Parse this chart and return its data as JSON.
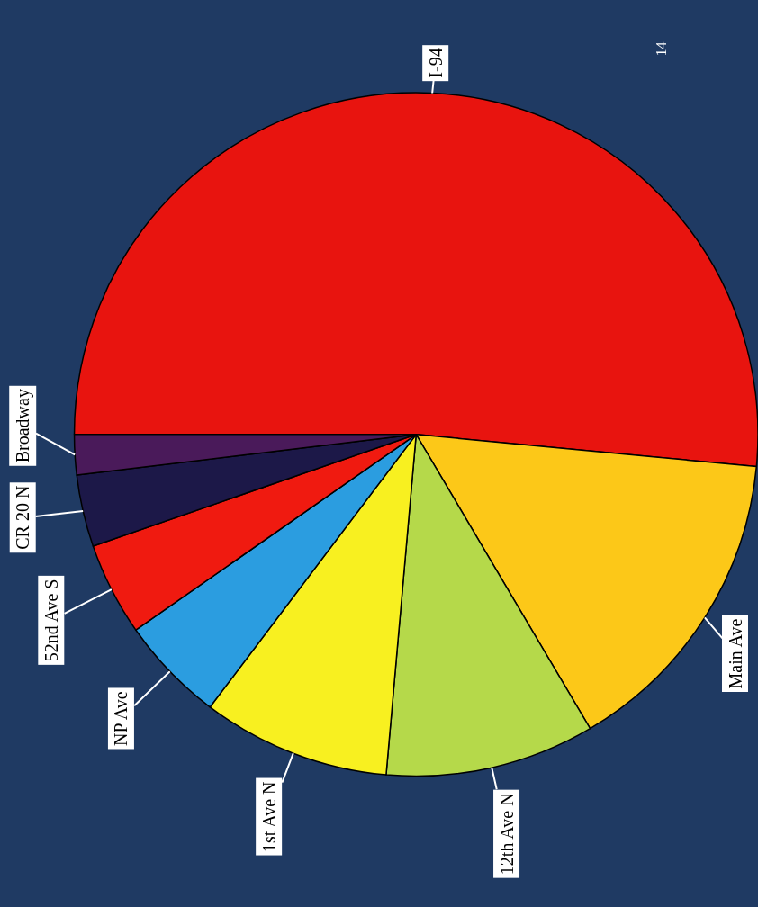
{
  "chart_data": {
    "type": "pie",
    "categories": [
      "I-94",
      "Main Ave",
      "12th Ave N",
      "1st Ave N",
      "NP Ave",
      "52nd Ave S",
      "CR 20 N",
      "Broadway"
    ],
    "values": [
      51.5,
      15.0,
      9.9,
      8.9,
      5.0,
      4.4,
      3.4,
      1.9
    ],
    "colors": [
      "#e8140f",
      "#fcc818",
      "#b5d94a",
      "#f8f020",
      "#2b9de0",
      "#f01a10",
      "#1c1848",
      "#4a1a5a"
    ],
    "annotations": [
      "14"
    ]
  }
}
